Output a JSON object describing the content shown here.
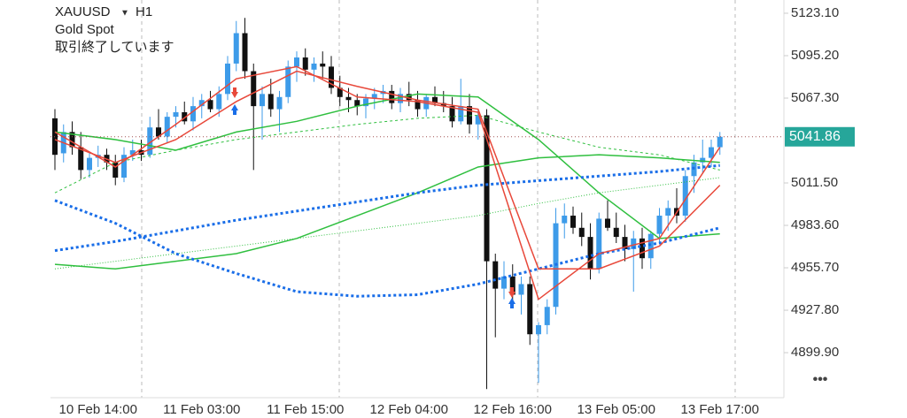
{
  "chart_data": {
    "type": "candlestick",
    "symbol": "XAUUSD",
    "timeframe": "H1",
    "subtitle": "Gold Spot",
    "status": "取引終了しています",
    "last_price": 5041.86,
    "last_price_color": "#26a69a",
    "up_color": "#3d9be9",
    "down_color": "#111111",
    "categories": [
      null,
      null,
      null,
      null,
      null,
      "10 Feb 14:00",
      null,
      null,
      null,
      null,
      null,
      null,
      null,
      null,
      null,
      null,
      null,
      "11 Feb 03:00",
      null,
      null,
      null,
      null,
      null,
      null,
      null,
      null,
      null,
      null,
      null,
      "11 Feb 15:00",
      null,
      null,
      null,
      null,
      null,
      null,
      null,
      null,
      null,
      null,
      null,
      "12 Feb 04:00",
      null,
      null,
      null,
      null,
      null,
      null,
      null,
      null,
      null,
      null,
      null,
      "12 Feb 16:00",
      null,
      null,
      null,
      null,
      null,
      null,
      null,
      null,
      null,
      null,
      null,
      "13 Feb 05:00",
      null,
      null,
      null,
      null,
      null,
      null,
      null,
      null,
      null,
      null,
      null,
      "13 Feb 17:00"
    ],
    "open": [
      5054,
      5031,
      5045,
      5035,
      5020,
      5028,
      5030,
      5025,
      5015,
      5030,
      5033,
      5030,
      5048,
      5042,
      5055,
      5058,
      5052,
      5062,
      5066,
      5060,
      5070,
      5090,
      5110,
      5085,
      5062,
      5070,
      5060,
      5068,
      5088,
      5094,
      5086,
      5090,
      5088,
      5074,
      5068,
      5066,
      5062,
      5067,
      5070,
      5072,
      5064,
      5070,
      5066,
      5060,
      5068,
      5064,
      5062,
      5052,
      5062,
      5050,
      5056,
      4960,
      4942,
      4950,
      4938,
      4945,
      4912,
      4918,
      4930,
      4985,
      4990,
      4982,
      4976,
      4955,
      4988,
      4982,
      4976,
      4968,
      4975,
      4962,
      4978,
      4990,
      4995,
      4990,
      5016,
      5025,
      5028,
      5035
    ],
    "high": [
      5060,
      5050,
      5052,
      5045,
      5032,
      5036,
      5034,
      5030,
      5035,
      5040,
      5040,
      5055,
      5060,
      5058,
      5062,
      5065,
      5068,
      5070,
      5072,
      5075,
      5095,
      5118,
      5120,
      5090,
      5075,
      5080,
      5072,
      5092,
      5098,
      5100,
      5094,
      5098,
      5095,
      5082,
      5074,
      5070,
      5070,
      5074,
      5076,
      5076,
      5074,
      5078,
      5072,
      5070,
      5075,
      5072,
      5068,
      5080,
      5070,
      5060,
      5060,
      4965,
      4960,
      4958,
      4950,
      4950,
      4920,
      4935,
      4995,
      4998,
      4996,
      4992,
      4985,
      4992,
      5000,
      4992,
      4984,
      4980,
      4982,
      4980,
      4995,
      5000,
      5008,
      5020,
      5030,
      5040,
      5040,
      5045
    ],
    "low": [
      5020,
      5025,
      5030,
      5014,
      5015,
      5022,
      5020,
      5010,
      5012,
      5026,
      5026,
      5028,
      5040,
      5038,
      5048,
      5050,
      5046,
      5054,
      5058,
      5055,
      5066,
      5085,
      5080,
      5020,
      5040,
      5055,
      5045,
      5064,
      5078,
      5082,
      5078,
      5080,
      5070,
      5062,
      5058,
      5056,
      5054,
      5060,
      5064,
      5060,
      5058,
      5062,
      5055,
      5055,
      5062,
      5058,
      5048,
      5050,
      5044,
      5040,
      4876,
      4910,
      4935,
      4930,
      4925,
      4905,
      4880,
      4912,
      4925,
      4975,
      4978,
      4970,
      4948,
      4952,
      4980,
      4972,
      4960,
      4940,
      4955,
      4955,
      4972,
      4980,
      4985,
      4986,
      5005,
      5018,
      5022,
      5030
    ],
    "close": [
      5030,
      5045,
      5035,
      5020,
      5028,
      5030,
      5025,
      5015,
      5030,
      5033,
      5030,
      5048,
      5042,
      5055,
      5058,
      5052,
      5062,
      5066,
      5060,
      5070,
      5090,
      5110,
      5085,
      5062,
      5070,
      5060,
      5068,
      5088,
      5094,
      5086,
      5090,
      5088,
      5074,
      5068,
      5066,
      5062,
      5067,
      5070,
      5072,
      5064,
      5070,
      5066,
      5060,
      5068,
      5064,
      5062,
      5052,
      5062,
      5050,
      5056,
      4960,
      4942,
      4950,
      4938,
      4945,
      4912,
      4918,
      4930,
      4985,
      4990,
      4982,
      4976,
      4955,
      4988,
      4982,
      4976,
      4968,
      4975,
      4962,
      4978,
      4990,
      4995,
      4990,
      5016,
      5025,
      5028,
      5035,
      5041.86
    ],
    "lines": [
      {
        "color": "#2fbf3f",
        "style": "dashed",
        "width": 1,
        "x": [
          0,
          7,
          14,
          21,
          28,
          35,
          42,
          49,
          56,
          63,
          70,
          77
        ],
        "values": [
          5005,
          5025,
          5033,
          5040,
          5045,
          5050,
          5054,
          5056,
          5045,
          5035,
          5030,
          5020
        ]
      },
      {
        "color": "#2fbf3f",
        "style": "dotted",
        "width": 1,
        "x": [
          0,
          7,
          14,
          21,
          28,
          35,
          42,
          49,
          56,
          63,
          70,
          77
        ],
        "values": [
          4955,
          4960,
          4965,
          4970,
          4975,
          4980,
          4985,
          4990,
          4998,
          5005,
          5010,
          5015
        ]
      },
      {
        "color": "#2fbf3f",
        "style": "solid",
        "width": 1.5,
        "x": [
          0,
          7,
          14,
          21,
          28,
          35,
          42,
          49,
          56,
          63,
          70,
          77
        ],
        "values": [
          4958,
          4955,
          4960,
          4965,
          4975,
          4990,
          5005,
          5022,
          5028,
          5030,
          5028,
          5025
        ]
      },
      {
        "color": "#2fbf3f",
        "style": "solid",
        "width": 1.5,
        "x": [
          0,
          7,
          14,
          21,
          28,
          35,
          42,
          49,
          56,
          63,
          70,
          77
        ],
        "values": [
          5045,
          5040,
          5033,
          5045,
          5052,
          5062,
          5070,
          5068,
          5040,
          5005,
          4975,
          4978
        ]
      },
      {
        "color": "#1a6ee8",
        "style": "dotted",
        "width": 3,
        "x": [
          0,
          7,
          14,
          21,
          28,
          35,
          42,
          49,
          56,
          63,
          70,
          77
        ],
        "values": [
          5000,
          4985,
          4965,
          4952,
          4940,
          4937,
          4938,
          4945,
          4955,
          4965,
          4972,
          4982
        ]
      },
      {
        "color": "#1a6ee8",
        "style": "dotted",
        "width": 3,
        "x": [
          0,
          7,
          14,
          21,
          28,
          35,
          42,
          49,
          56,
          63,
          70,
          77
        ],
        "values": [
          4967,
          4973,
          4980,
          4987,
          4993,
          4999,
          5005,
          5010,
          5013,
          5016,
          5019,
          5023
        ]
      },
      {
        "color": "#e8483a",
        "style": "solid",
        "width": 1.5,
        "x": [
          0,
          7,
          14,
          21,
          28,
          35,
          42,
          49,
          56,
          63,
          70,
          77
        ],
        "values": [
          5040,
          5025,
          5040,
          5065,
          5085,
          5075,
          5066,
          5060,
          4955,
          4955,
          4970,
          5010
        ]
      },
      {
        "color": "#e8483a",
        "style": "solid",
        "width": 1.5,
        "x": [
          0,
          7,
          14,
          21,
          28,
          35,
          42,
          49,
          56,
          63,
          70,
          77
        ],
        "values": [
          5045,
          5022,
          5050,
          5080,
          5088,
          5068,
          5065,
          5058,
          4935,
          4965,
          4975,
          5035
        ]
      }
    ],
    "ylim": [
      4870.3,
      5131.8
    ],
    "yticks": [
      {
        "value": 5123.1,
        "label": "5123.10"
      },
      {
        "value": 5095.2,
        "label": "5095.20"
      },
      {
        "value": 5067.3,
        "label": "5067.30"
      },
      {
        "value": 5011.5,
        "label": "5011.50"
      },
      {
        "value": 4983.6,
        "label": "4983.60"
      },
      {
        "value": 4955.7,
        "label": "4955.70"
      },
      {
        "value": 4927.8,
        "label": "4927.80"
      },
      {
        "value": 4899.9,
        "label": "4899.90"
      }
    ]
  }
}
